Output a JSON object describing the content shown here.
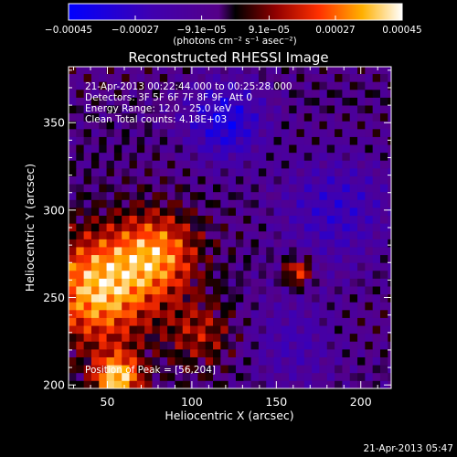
{
  "chart_data": {
    "type": "heatmap",
    "title": "Reconstructed RHESSI Image",
    "xlabel": "Heliocentric X (arcsec)",
    "ylabel": "Heliocentric Y (arcsec)",
    "xlim": [
      27,
      218
    ],
    "ylim": [
      198,
      382
    ],
    "x_ticks": [
      {
        "value": 50,
        "label": "50"
      },
      {
        "value": 100,
        "label": "100"
      },
      {
        "value": 150,
        "label": "150"
      },
      {
        "value": 200,
        "label": "200"
      }
    ],
    "y_ticks": [
      {
        "value": 200,
        "label": "200"
      },
      {
        "value": 250,
        "label": "250"
      },
      {
        "value": 300,
        "label": "300"
      },
      {
        "value": 350,
        "label": "350"
      }
    ],
    "colorbar": {
      "range": [
        -0.00045,
        0.00045
      ],
      "unit_label": "(photons cm⁻² s⁻¹ asec⁻²)",
      "ticks": [
        {
          "value": -0.00045,
          "label": "−0.00045"
        },
        {
          "value": -0.00027,
          "label": "−0.00027"
        },
        {
          "value": -9.1e-05,
          "label": "−9.1e−05"
        },
        {
          "value": 9.1e-05,
          "label": "9.1e−05"
        },
        {
          "value": 0.00027,
          "label": "0.00027"
        },
        {
          "value": 0.00045,
          "label": "0.00045"
        }
      ],
      "stops": [
        {
          "pos": 0.0,
          "color": "#0000ff"
        },
        {
          "pos": 0.25,
          "color": "#4000b0"
        },
        {
          "pos": 0.45,
          "color": "#550088"
        },
        {
          "pos": 0.5,
          "color": "#000000"
        },
        {
          "pos": 0.62,
          "color": "#900000"
        },
        {
          "pos": 0.75,
          "color": "#ff3000"
        },
        {
          "pos": 0.88,
          "color": "#ffb000"
        },
        {
          "pos": 1.0,
          "color": "#ffffff"
        }
      ]
    },
    "annotations": [
      "21-Apr-2013 00:22:44.000 to 00:25:28.000",
      "Detectors: 3F 5F 6F 7F 8F 9F, Att 0",
      "Energy Range: 12.0 - 25.0 keV",
      "Clean     Total counts: 4.18E+03"
    ],
    "peak": {
      "x": 56,
      "y": 204,
      "label": "Position of Peak = [56,204]"
    },
    "sources": [
      {
        "x": 45,
        "y": 255,
        "amplitude": 0.00043,
        "sigma": 22
      },
      {
        "x": 80,
        "y": 275,
        "amplitude": 0.00033,
        "sigma": 17
      },
      {
        "x": 56,
        "y": 204,
        "amplitude": 0.00045,
        "sigma": 10
      },
      {
        "x": 163,
        "y": 265,
        "amplitude": 0.0003,
        "sigma": 6
      },
      {
        "x": 105,
        "y": 230,
        "amplitude": 0.00018,
        "sigma": 14
      },
      {
        "x": 120,
        "y": 350,
        "amplitude": -0.0003,
        "sigma": 16
      },
      {
        "x": 185,
        "y": 300,
        "amplitude": -0.0002,
        "sigma": 22
      },
      {
        "x": 160,
        "y": 225,
        "amplitude": -0.00015,
        "sigma": 18
      }
    ],
    "grid": false
  },
  "footer": {
    "timestamp": "21-Apr-2013 05:47"
  }
}
